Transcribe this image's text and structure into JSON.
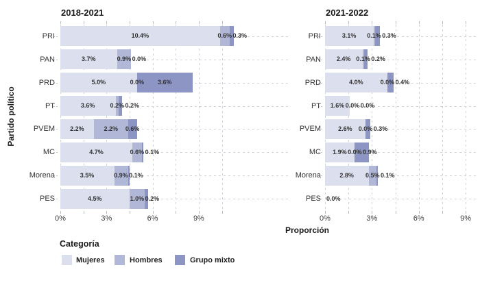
{
  "figure": {
    "y_axis_title": "Partido político",
    "x_axis_title": "Proporción",
    "legend_title": "Categoría",
    "legend": [
      {
        "name": "Mujeres",
        "color": "#dcdfee"
      },
      {
        "name": "Hombres",
        "color": "#b1b7d7"
      },
      {
        "name": "Grupo mixto",
        "color": "#8c95c4"
      }
    ]
  },
  "chart_data": [
    {
      "type": "bar",
      "orientation": "horizontal",
      "stacked": true,
      "title": "2018-2021",
      "xlabel": "Proporción",
      "ylabel": "Partido político",
      "categories": [
        "PRI",
        "PAN",
        "PRD",
        "PT",
        "PVEM",
        "MC",
        "Morena",
        "PES"
      ],
      "xlim": [
        0,
        14.8
      ],
      "x_grid": [
        0,
        1.5,
        3,
        4.5,
        6,
        7.5,
        9,
        10.5
      ],
      "x_tick_values": [
        0,
        3,
        6,
        9
      ],
      "x_tick_labels": [
        "0%",
        "3%",
        "6%",
        "9%"
      ],
      "series": [
        {
          "name": "Mujeres",
          "color": "#dcdfee",
          "values": [
            10.4,
            3.7,
            5.0,
            3.6,
            2.2,
            4.7,
            3.5,
            4.5
          ],
          "labels": [
            "10.4%",
            "3.7%",
            "5.0%",
            "3.6%",
            "2.2%",
            "4.7%",
            "3.5%",
            "4.5%"
          ]
        },
        {
          "name": "Hombres",
          "color": "#b1b7d7",
          "values": [
            0.6,
            0.9,
            0.0,
            0.2,
            2.2,
            0.6,
            0.9,
            1.0
          ],
          "labels": [
            "0.6%",
            "0.9%",
            "0.0%",
            "0.2%",
            "2.2%",
            "0.6%",
            "0.9%",
            "1.0%"
          ]
        },
        {
          "name": "Grupo mixto",
          "color": "#8c95c4",
          "values": [
            0.3,
            0.0,
            3.6,
            0.2,
            0.6,
            0.1,
            0.1,
            0.2
          ],
          "labels": [
            "0.3%",
            "0.0%",
            "3.6%",
            "0.2%",
            "0.6%",
            "0.1%",
            "0.1%",
            "0.2%"
          ]
        }
      ]
    },
    {
      "type": "bar",
      "orientation": "horizontal",
      "stacked": true,
      "title": "2021-2022",
      "xlabel": "Proporción",
      "ylabel": "Partido político",
      "categories": [
        "PRI",
        "PAN",
        "PRD",
        "PT",
        "PVEM",
        "MC",
        "Morena",
        "PES"
      ],
      "xlim": [
        0,
        9.7
      ],
      "x_grid": [
        0,
        1.5,
        3,
        4.5,
        6,
        7.5,
        9
      ],
      "x_tick_values": [
        0,
        3,
        6,
        9
      ],
      "x_tick_labels": [
        "0%",
        "3%",
        "6%",
        "9%"
      ],
      "series": [
        {
          "name": "Mujeres",
          "color": "#dcdfee",
          "values": [
            3.1,
            2.4,
            4.0,
            1.6,
            2.6,
            1.9,
            2.8,
            0.0
          ],
          "labels": [
            "3.1%",
            "2.4%",
            "4.0%",
            "1.6%",
            "2.6%",
            "1.9%",
            "2.8%",
            "0.0%"
          ]
        },
        {
          "name": "Hombres",
          "color": "#b1b7d7",
          "values": [
            0.1,
            0.1,
            0.0,
            0.0,
            0.0,
            0.0,
            0.5,
            0.0
          ],
          "labels": [
            "0.1%",
            "0.1%",
            "0.0%",
            "0.0%",
            "0.0%",
            "0.0%",
            "0.5%",
            ""
          ]
        },
        {
          "name": "Grupo mixto",
          "color": "#8c95c4",
          "values": [
            0.3,
            0.2,
            0.4,
            0.0,
            0.3,
            0.9,
            0.1,
            0.0
          ],
          "labels": [
            "0.3%",
            "0.2%",
            "0.4%",
            "0.0%",
            "0.3%",
            "0.9%",
            "0.1%",
            ""
          ]
        }
      ]
    }
  ]
}
